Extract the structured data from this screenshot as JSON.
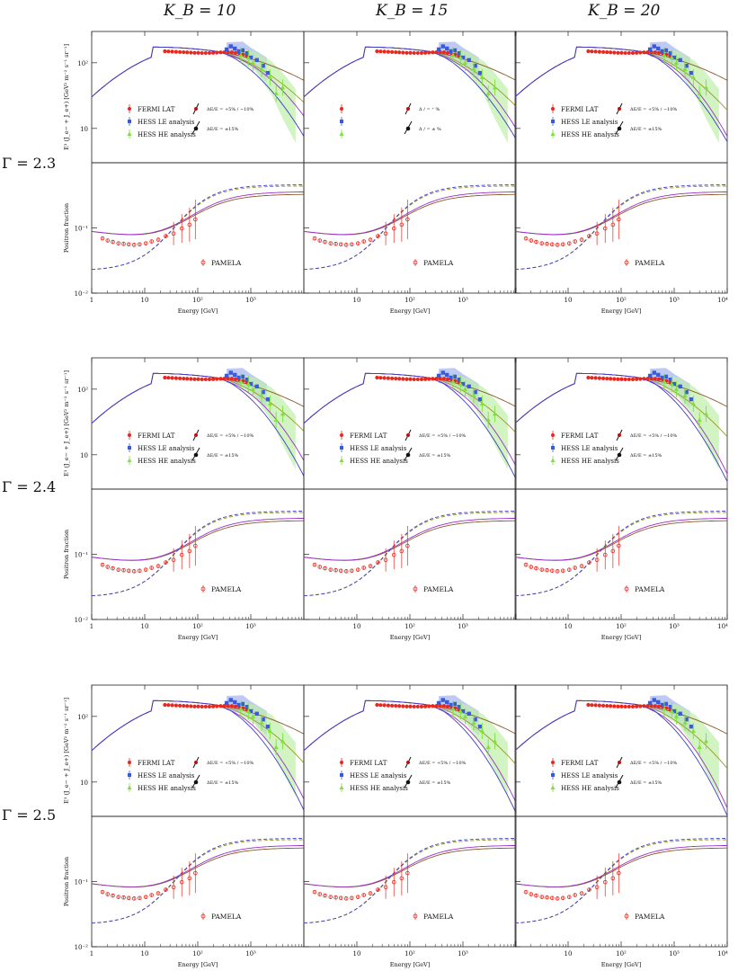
{
  "columns": [
    "K_B = 10",
    "K_B = 15",
    "K_B = 20"
  ],
  "rows": [
    "Γ = 2.3",
    "Γ = 2.4",
    "Γ = 2.5"
  ],
  "colors": {
    "fermi": "#e8281e",
    "hess_le": "#3a5bd9",
    "hess_he": "#7ee03c",
    "pamela": "#e8281e",
    "model_brown": "#8b5a2b",
    "model_purple": "#9b2fc9",
    "model_blue": "#3c3cc8",
    "model_olive": "#9a9a2a",
    "band_blue": "#aab8f0",
    "band_green": "#bff0a8"
  },
  "chart_data": {
    "type": "scatter",
    "x_scale": "log",
    "xlim": [
      1,
      10000
    ],
    "xlabel": "Energy [GeV]",
    "x_ticks": [
      "1",
      "10",
      "10²",
      "10³",
      "10⁴"
    ],
    "top_panel": {
      "ylabel": "E³ (J_e− + J_e+) [GeV² m⁻² s⁻¹ sr⁻¹]",
      "y_scale": "log",
      "ylim": [
        3,
        300
      ],
      "y_ticks": [
        "10",
        "10²"
      ],
      "legend": [
        "FERMI LAT",
        "HESS LE analysis",
        "HESS HE analysis"
      ],
      "syst_le": "ΔE/E = +5% / −10%",
      "syst_he": "ΔE/E = ±15%",
      "syst_le_garbled": "Δ  /  =  ⁺  %",
      "syst_he_garbled": "Δ  /  = ±   %",
      "fermi": {
        "x": [
          24,
          28,
          33,
          39,
          46,
          54,
          63,
          74,
          87,
          102,
          120,
          141,
          166,
          195,
          229,
          270,
          317,
          373,
          439,
          516,
          607,
          714,
          840
        ],
        "y": [
          150,
          149,
          148,
          147,
          146,
          145,
          144,
          143,
          142,
          142,
          141,
          141,
          141,
          142,
          143,
          144,
          145,
          145,
          144,
          142,
          140,
          134,
          128
        ]
      },
      "hess_le": {
        "x": [
          350,
          420,
          500,
          600,
          700,
          850,
          1000,
          1300,
          1700,
          2100
        ],
        "y": [
          160,
          178,
          165,
          150,
          155,
          140,
          120,
          110,
          90,
          70
        ]
      },
      "hess_he": {
        "x": [
          650,
          900,
          1100,
          1600,
          2300,
          3000,
          4000
        ],
        "y": [
          130,
          120,
          100,
          80,
          60,
          34,
          42
        ]
      }
    },
    "bottom_panel": {
      "ylabel": "Positron fraction",
      "y_scale": "log",
      "ylim": [
        0.01,
        1
      ],
      "y_ticks": [
        "10⁻²",
        "10⁻¹"
      ],
      "legend": [
        "PAMELA"
      ],
      "pamela": {
        "x": [
          1.6,
          2.0,
          2.5,
          3.2,
          4.0,
          5.0,
          6.3,
          8.0,
          10.5,
          13.5,
          18,
          25,
          35,
          50,
          70,
          90
        ],
        "y": [
          0.069,
          0.064,
          0.061,
          0.058,
          0.057,
          0.056,
          0.055,
          0.056,
          0.058,
          0.062,
          0.066,
          0.075,
          0.082,
          0.098,
          0.112,
          0.135
        ]
      }
    },
    "panels": [
      {
        "gamma": 2.3,
        "kb": 10,
        "slope": [
          0.022,
          0.041,
          -0.11,
          -0.22,
          -0.24
        ],
        "lin_pos": [
          -1.64,
          0.39,
          1.5,
          0.08,
          0.01
        ],
        "dash_lo": 0.022,
        "sol_shift": 0,
        "alt_top": 0
      },
      {
        "gamma": 2.3,
        "kb": 15,
        "slope": [
          0.022,
          0.041,
          -0.12,
          -0.28,
          -0.24
        ],
        "lin_pos": [
          -1.64,
          0.39,
          1.5,
          0.08,
          0.01
        ],
        "dash_lo": 0.022,
        "sol_shift": 0,
        "alt_top": 1
      },
      {
        "gamma": 2.3,
        "kb": 20,
        "slope": [
          0.022,
          0.041,
          -0.13,
          -0.32,
          -0.24
        ],
        "lin_pos": [
          -1.64,
          0.39,
          1.5,
          0.08,
          0.01
        ],
        "dash_lo": 0.022,
        "sol_shift": 0,
        "alt_top": 2
      },
      {
        "gamma": 2.4,
        "kb": 10,
        "slope": [
          0.022,
          0.041,
          -0.12,
          -0.3,
          -0.3
        ],
        "lin_pos": [
          -1.64,
          0.39,
          1.7,
          0.1,
          0.01
        ],
        "dash_lo": 0.022,
        "sol_shift": 0.01,
        "alt_top": 0
      },
      {
        "gamma": 2.4,
        "kb": 15,
        "slope": [
          0.022,
          0.041,
          -0.12,
          -0.33,
          -0.3
        ],
        "lin_pos": [
          -1.64,
          0.39,
          1.7,
          0.1,
          0.01
        ],
        "dash_lo": 0.022,
        "sol_shift": 0.01,
        "alt_top": 1
      },
      {
        "gamma": 2.4,
        "kb": 20,
        "slope": [
          0.022,
          0.041,
          -0.13,
          -0.37,
          -0.3
        ],
        "lin_pos": [
          -1.64,
          0.39,
          1.7,
          0.1,
          0.01
        ],
        "dash_lo": 0.022,
        "sol_shift": 0.01,
        "alt_top": 2
      },
      {
        "gamma": 2.5,
        "kb": 10,
        "slope": [
          0.022,
          0.041,
          -0.14,
          -0.35,
          -0.33
        ],
        "lin_pos": [
          -1.64,
          0.39,
          1.8,
          0.12,
          0.01
        ],
        "dash_lo": 0.022,
        "sol_shift": 0.02,
        "alt_top": 0
      },
      {
        "gamma": 2.5,
        "kb": 15,
        "slope": [
          0.022,
          0.041,
          -0.14,
          -0.37,
          -0.33
        ],
        "lin_pos": [
          -1.64,
          0.39,
          1.8,
          0.12,
          0.01
        ],
        "dash_lo": 0.022,
        "sol_shift": 0.02,
        "alt_top": 1
      },
      {
        "gamma": 2.5,
        "kb": 20,
        "slope": [
          0.022,
          0.041,
          -0.15,
          -0.4,
          -0.33
        ],
        "lin_pos": [
          -1.64,
          0.39,
          1.8,
          0.12,
          0.01
        ],
        "dash_lo": 0.022,
        "sol_shift": 0.02,
        "alt_top": 2
      }
    ]
  }
}
